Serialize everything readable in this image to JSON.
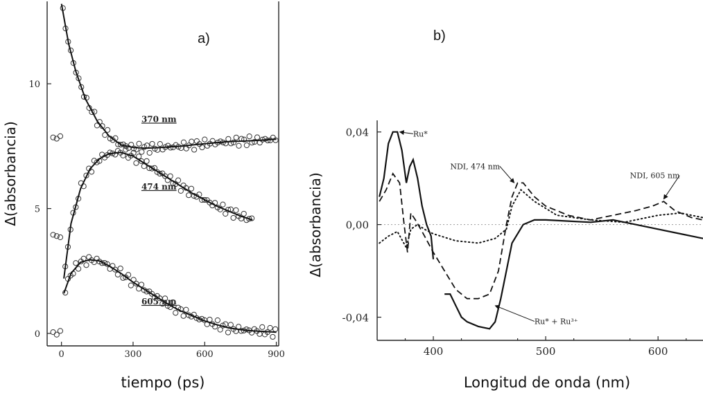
{
  "chart_data": [
    {
      "type": "scatter",
      "panel_label": "a)",
      "xlabel": "tiempo (ps)",
      "ylabel": "Δ(absorbancia)",
      "xlim": [
        -60,
        910
      ],
      "ylim": [
        -0.5,
        13.3
      ],
      "x_ticks": [
        0,
        300,
        600,
        900
      ],
      "y_ticks": [
        0,
        5,
        10
      ],
      "series": [
        {
          "name": "370 nm",
          "pre_points": [
            [
              -35,
              7.85
            ],
            [
              -20,
              7.8
            ],
            [
              -5,
              7.9
            ]
          ],
          "fit": [
            [
              0,
              13.2
            ],
            [
              30,
              11.6
            ],
            [
              60,
              10.5
            ],
            [
              100,
              9.4
            ],
            [
              150,
              8.5
            ],
            [
              200,
              7.9
            ],
            [
              250,
              7.55
            ],
            [
              300,
              7.45
            ],
            [
              350,
              7.42
            ],
            [
              400,
              7.44
            ],
            [
              500,
              7.5
            ],
            [
              600,
              7.6
            ],
            [
              700,
              7.68
            ],
            [
              800,
              7.72
            ],
            [
              900,
              7.78
            ]
          ],
          "label_at": [
            300,
            8.3
          ]
        },
        {
          "name": "474 nm",
          "pre_points": [
            [
              -35,
              3.95
            ],
            [
              -20,
              3.9
            ],
            [
              -5,
              3.85
            ]
          ],
          "fit": [
            [
              10,
              2.2
            ],
            [
              40,
              4.4
            ],
            [
              80,
              5.8
            ],
            [
              120,
              6.6
            ],
            [
              160,
              7.0
            ],
            [
              200,
              7.2
            ],
            [
              250,
              7.25
            ],
            [
              300,
              7.1
            ],
            [
              350,
              6.8
            ],
            [
              400,
              6.5
            ],
            [
              450,
              6.2
            ],
            [
              500,
              5.9
            ],
            [
              550,
              5.6
            ],
            [
              600,
              5.35
            ],
            [
              650,
              5.1
            ],
            [
              700,
              4.9
            ],
            [
              750,
              4.7
            ],
            [
              800,
              4.55
            ]
          ],
          "label_at": [
            300,
            5.6
          ]
        },
        {
          "name": "605 nm",
          "pre_points": [
            [
              -35,
              0.05
            ],
            [
              -20,
              -0.05
            ],
            [
              -5,
              0.1
            ]
          ],
          "fit": [
            [
              10,
              1.6
            ],
            [
              40,
              2.4
            ],
            [
              80,
              2.85
            ],
            [
              120,
              2.95
            ],
            [
              160,
              2.9
            ],
            [
              200,
              2.7
            ],
            [
              250,
              2.4
            ],
            [
              300,
              2.05
            ],
            [
              350,
              1.75
            ],
            [
              400,
              1.45
            ],
            [
              450,
              1.15
            ],
            [
              500,
              0.9
            ],
            [
              550,
              0.7
            ],
            [
              600,
              0.5
            ],
            [
              650,
              0.35
            ],
            [
              700,
              0.22
            ],
            [
              750,
              0.15
            ],
            [
              800,
              0.1
            ],
            [
              850,
              0.08
            ],
            [
              900,
              0.05
            ]
          ],
          "label_at": [
            300,
            1.0
          ]
        }
      ]
    },
    {
      "type": "line",
      "panel_label": "b)",
      "xlabel": "Longitud de onda (nm)",
      "ylabel": "Δ(absorbancia)",
      "xlim": [
        350,
        640
      ],
      "ylim": [
        -0.05,
        0.045
      ],
      "x_ticks": [
        400,
        500,
        600
      ],
      "y_ticks": [
        0.04,
        0.0,
        -0.04
      ],
      "y_tick_labels": [
        "0,04",
        "0,00",
        "-0,04"
      ],
      "series": [
        {
          "style": "solid",
          "points": [
            [
              352,
              0.012
            ],
            [
              356,
              0.02
            ],
            [
              360,
              0.035
            ],
            [
              364,
              0.04
            ],
            [
              368,
              0.04
            ],
            [
              372,
              0.032
            ],
            [
              376,
              0.018
            ],
            [
              379,
              0.025
            ],
            [
              382,
              0.028
            ],
            [
              386,
              0.02
            ],
            [
              390,
              0.008
            ],
            [
              394,
              0.0
            ],
            [
              398,
              -0.005
            ],
            [
              400,
              -0.015
            ]
          ]
        },
        {
          "style": "solid",
          "points": [
            [
              410,
              -0.03
            ],
            [
              415,
              -0.03
            ],
            [
              420,
              -0.035
            ],
            [
              425,
              -0.04
            ],
            [
              430,
              -0.042
            ],
            [
              440,
              -0.044
            ],
            [
              450,
              -0.045
            ],
            [
              455,
              -0.042
            ],
            [
              460,
              -0.032
            ],
            [
              465,
              -0.02
            ],
            [
              470,
              -0.008
            ],
            [
              480,
              0.0
            ],
            [
              490,
              0.002
            ],
            [
              500,
              0.002
            ],
            [
              520,
              0.0015
            ],
            [
              540,
              0.001
            ],
            [
              560,
              0.002
            ],
            [
              580,
              0.0
            ],
            [
              600,
              -0.002
            ],
            [
              620,
              -0.004
            ],
            [
              640,
              -0.006
            ]
          ]
        },
        {
          "style": "dashed",
          "points": [
            [
              352,
              0.01
            ],
            [
              358,
              0.015
            ],
            [
              364,
              0.022
            ],
            [
              370,
              0.018
            ],
            [
              374,
              0.0
            ],
            [
              377,
              -0.012
            ],
            [
              380,
              0.005
            ],
            [
              384,
              0.002
            ],
            [
              390,
              -0.003
            ],
            [
              400,
              -0.012
            ],
            [
              410,
              -0.02
            ],
            [
              420,
              -0.028
            ],
            [
              430,
              -0.032
            ],
            [
              440,
              -0.032
            ],
            [
              450,
              -0.03
            ],
            [
              458,
              -0.02
            ],
            [
              465,
              0.0
            ],
            [
              470,
              0.012
            ],
            [
              475,
              0.018
            ],
            [
              480,
              0.018
            ],
            [
              490,
              0.012
            ],
            [
              500,
              0.008
            ],
            [
              520,
              0.004
            ],
            [
              540,
              0.002
            ],
            [
              560,
              0.004
            ],
            [
              580,
              0.006
            ],
            [
              595,
              0.008
            ],
            [
              605,
              0.01
            ],
            [
              615,
              0.006
            ],
            [
              630,
              0.003
            ],
            [
              640,
              0.002
            ]
          ]
        },
        {
          "style": "dotted",
          "points": [
            [
              352,
              -0.008
            ],
            [
              360,
              -0.005
            ],
            [
              368,
              -0.003
            ],
            [
              376,
              -0.01
            ],
            [
              380,
              -0.002
            ],
            [
              386,
              0.0
            ],
            [
              392,
              -0.002
            ],
            [
              400,
              -0.004
            ],
            [
              420,
              -0.007
            ],
            [
              440,
              -0.008
            ],
            [
              455,
              -0.006
            ],
            [
              465,
              -0.002
            ],
            [
              470,
              0.008
            ],
            [
              478,
              0.015
            ],
            [
              490,
              0.01
            ],
            [
              510,
              0.004
            ],
            [
              540,
              0.002
            ],
            [
              570,
              0.001
            ],
            [
              600,
              0.004
            ],
            [
              620,
              0.005
            ],
            [
              640,
              0.003
            ]
          ]
        }
      ],
      "annotations": [
        {
          "text": "Ru*",
          "x": 382,
          "y": 0.038,
          "arrow_to": [
            370,
            0.04
          ]
        },
        {
          "text": "NDI, 474 nm",
          "x": 415,
          "y": 0.024,
          "arrow_to": [
            472,
            0.018
          ]
        },
        {
          "text": "NDI, 605 nm",
          "x": 575,
          "y": 0.02,
          "arrow_to": [
            605,
            0.011
          ]
        },
        {
          "text": "Ru* + Ru³⁺",
          "x": 490,
          "y": -0.043,
          "arrow_to": [
            455,
            -0.035
          ]
        }
      ]
    }
  ]
}
